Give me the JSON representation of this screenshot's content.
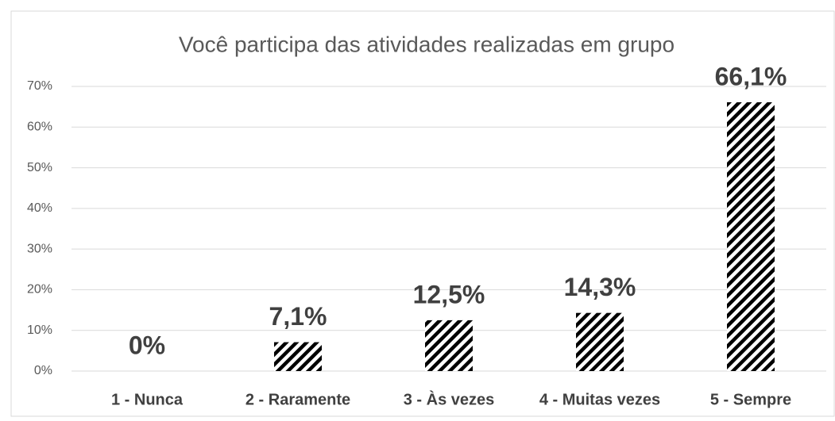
{
  "chart_data": {
    "type": "bar",
    "title": "Você participa das atividades realizadas em grupo",
    "categories": [
      "1 - Nunca",
      "2 - Raramente",
      "3 - Às vezes",
      "4 - Muitas vezes",
      "5 - Sempre"
    ],
    "values": [
      0,
      7.1,
      12.5,
      14.3,
      66.1
    ],
    "value_labels": [
      "0%",
      "7,1%",
      "12,5%",
      "14,3%",
      "66,1%"
    ],
    "color": "#000000",
    "ylim": [
      0,
      70
    ],
    "yticks": [
      {
        "value": 0,
        "label": "0%"
      },
      {
        "value": 10,
        "label": "10%"
      },
      {
        "value": 20,
        "label": "20%"
      },
      {
        "value": 30,
        "label": "30%"
      },
      {
        "value": 40,
        "label": "40%"
      },
      {
        "value": 50,
        "label": "50%"
      },
      {
        "value": 60,
        "label": "60%"
      },
      {
        "value": 70,
        "label": "70%"
      }
    ],
    "grid": true
  }
}
